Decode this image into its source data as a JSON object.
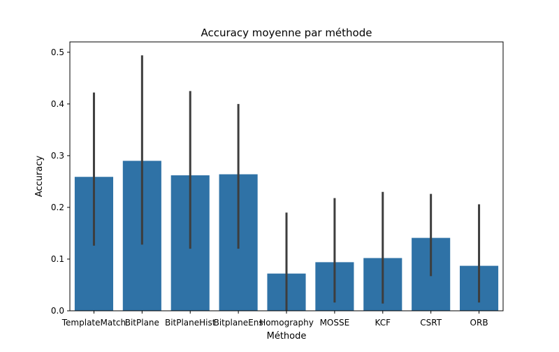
{
  "chart_data": {
    "type": "bar",
    "title": "Accuracy moyenne par méthode",
    "xlabel": "Méthode",
    "ylabel": "Accuracy",
    "ylim": [
      0,
      0.52
    ],
    "yticks": [
      0.0,
      0.1,
      0.2,
      0.3,
      0.4,
      0.5
    ],
    "ytick_labels": [
      "0.0",
      "0.1",
      "0.2",
      "0.3",
      "0.4",
      "0.5"
    ],
    "categories": [
      "TemplateMatch",
      "BitPlane",
      "BitPlaneHist",
      "BitplaneEns",
      "Homography",
      "MOSSE",
      "KCF",
      "CSRT",
      "ORB"
    ],
    "values": [
      0.259,
      0.29,
      0.262,
      0.264,
      0.072,
      0.094,
      0.102,
      0.141,
      0.087
    ],
    "error_low": [
      0.126,
      0.128,
      0.12,
      0.12,
      0.0,
      0.016,
      0.014,
      0.067,
      0.016
    ],
    "error_high": [
      0.422,
      0.494,
      0.425,
      0.4,
      0.19,
      0.218,
      0.23,
      0.226,
      0.206
    ],
    "grid": false,
    "bar_color": "#2f72a6",
    "error_color": "#3d3d3d"
  }
}
